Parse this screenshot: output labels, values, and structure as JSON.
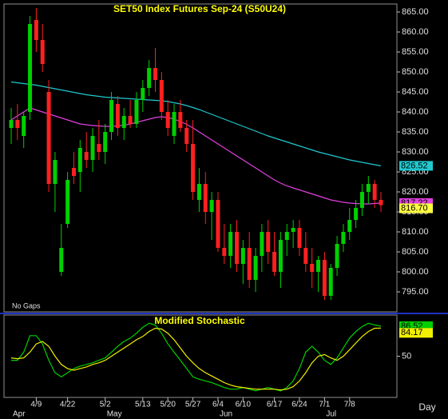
{
  "chart_data": {
    "type": "candlestick",
    "title": "SET50  Index  Futures  Sep-24  (S50U24)",
    "note": "No  Gaps",
    "x_label": "Day",
    "categories": [
      null,
      null,
      null,
      null,
      "4/9",
      null,
      null,
      null,
      null,
      "4/22",
      null,
      null,
      null,
      null,
      null,
      "5/2",
      null,
      null,
      null,
      null,
      null,
      "5/13",
      null,
      null,
      null,
      "5/20",
      null,
      null,
      null,
      "5/27",
      null,
      null,
      null,
      "6/4",
      null,
      null,
      null,
      "6/10",
      null,
      null,
      null,
      null,
      "6/17",
      null,
      null,
      null,
      "6/24",
      null,
      null,
      null,
      "7/1",
      null,
      null,
      null,
      "7/8",
      null,
      null,
      null,
      null,
      null
    ],
    "months": [
      "Apr",
      null,
      null,
      null,
      null,
      null,
      null,
      null,
      null,
      null,
      null,
      null,
      null,
      null,
      null,
      "May",
      null,
      null,
      null,
      null,
      null,
      null,
      null,
      null,
      null,
      null,
      null,
      null,
      null,
      null,
      null,
      null,
      null,
      "Jun",
      null,
      null,
      null,
      null,
      null,
      null,
      null,
      null,
      null,
      null,
      null,
      null,
      null,
      null,
      null,
      null,
      "Jul",
      null,
      null,
      null,
      null,
      null,
      null,
      null,
      null,
      null
    ],
    "open": [
      836,
      838,
      834,
      840,
      863,
      858,
      845,
      822,
      800,
      812,
      826,
      825,
      830,
      828,
      832,
      830,
      835,
      842,
      836,
      839,
      837,
      843,
      846,
      851,
      848,
      840,
      834,
      840,
      836,
      832,
      818,
      822,
      815,
      818,
      806,
      804,
      810,
      802,
      806,
      798,
      804,
      810,
      805,
      800,
      808,
      810,
      811,
      806,
      802,
      800,
      803,
      794,
      801,
      807,
      810,
      813,
      816,
      820,
      822,
      818
    ],
    "high": [
      841,
      842,
      840,
      864,
      866,
      862,
      848,
      830,
      812,
      825,
      830,
      833,
      835,
      836,
      838,
      837,
      845,
      844,
      841,
      843,
      845,
      848,
      853,
      856,
      850,
      843,
      842,
      843,
      838,
      838,
      826,
      825,
      820,
      820,
      812,
      812,
      813,
      808,
      810,
      806,
      812,
      813,
      810,
      810,
      812,
      813,
      813,
      810,
      806,
      804,
      805,
      802,
      809,
      812,
      816,
      818,
      822,
      824,
      823,
      820
    ],
    "low": [
      832,
      833,
      831,
      838,
      855,
      850,
      820,
      815,
      799,
      811,
      822,
      820,
      826,
      825,
      828,
      827,
      833,
      834,
      833,
      836,
      836,
      840,
      844,
      845,
      838,
      834,
      832,
      835,
      830,
      818,
      815,
      812,
      808,
      805,
      802,
      801,
      800,
      797,
      796,
      795,
      800,
      802,
      799,
      796,
      804,
      806,
      804,
      800,
      796,
      795,
      793,
      793,
      799,
      805,
      808,
      811,
      814,
      817,
      816,
      815
    ],
    "close": [
      838,
      836,
      839,
      862,
      858,
      852,
      822,
      828,
      806,
      823,
      824,
      831,
      828,
      834,
      830,
      835,
      843,
      836,
      839,
      837,
      843,
      846,
      851,
      848,
      840,
      836,
      840,
      836,
      832,
      820,
      822,
      815,
      818,
      806,
      804,
      810,
      802,
      806,
      798,
      804,
      810,
      805,
      800,
      808,
      810,
      811,
      806,
      802,
      800,
      803,
      794,
      801,
      807,
      810,
      813,
      816,
      820,
      822,
      818,
      816.7
    ],
    "last_close_label": "816.70",
    "up_color": "#00d000",
    "down_color": "#ff2020",
    "overlays": [
      {
        "color": "#20c8d0",
        "values": [
          847.5,
          847.3,
          847.1,
          846.9,
          846.7,
          846.4,
          846.1,
          845.8,
          845.5,
          845.2,
          844.9,
          844.6,
          844.3,
          844.1,
          843.9,
          843.7,
          843.6,
          843.5,
          843.4,
          843.3,
          843.2,
          843.1,
          843,
          842.9,
          842.8,
          842.6,
          842.3,
          842,
          841.6,
          841.1,
          840.6,
          840,
          839.4,
          838.8,
          838.2,
          837.6,
          837,
          836.4,
          835.8,
          835.2,
          834.6,
          834,
          833.5,
          833,
          832.5,
          832,
          831.5,
          831,
          830.5,
          830,
          829.6,
          829.2,
          828.8,
          828.4,
          828,
          827.7,
          827.4,
          827.1,
          826.8,
          826.52
        ]
      },
      {
        "color": "#e040e0",
        "values": [
          838,
          839,
          840,
          841,
          840.5,
          840,
          839.5,
          839,
          838.5,
          838,
          837.5,
          837,
          836.8,
          836.6,
          836.5,
          836.4,
          836.4,
          836.5,
          836.7,
          837,
          837.4,
          837.8,
          838.2,
          838.6,
          838.8,
          838.6,
          838.2,
          837.6,
          836.9,
          836,
          835,
          834,
          833,
          832,
          831,
          830,
          829,
          828,
          827,
          826,
          825,
          824,
          823,
          822.2,
          821.5,
          821,
          820.5,
          820,
          819.5,
          819,
          818.5,
          818,
          817.7,
          817.4,
          817.2,
          817.1,
          817,
          817,
          817.1,
          817.22
        ]
      }
    ],
    "ylim": [
      790,
      867
    ],
    "yticks": [
      {
        "value": 795,
        "label": "795.00"
      },
      {
        "value": 800,
        "label": "800.00"
      },
      {
        "value": 805,
        "label": "805.00"
      },
      {
        "value": 810,
        "label": "810.00"
      },
      {
        "value": 815,
        "label": "815.00"
      },
      {
        "value": 820,
        "label": "820.00"
      },
      {
        "value": 825,
        "label": "825.00"
      },
      {
        "value": 830,
        "label": "830.00"
      },
      {
        "value": 835,
        "label": "835.00"
      },
      {
        "value": 840,
        "label": "840.00"
      },
      {
        "value": 845,
        "label": "845.00"
      },
      {
        "value": 850,
        "label": "850.00"
      },
      {
        "value": 855,
        "label": "855.00"
      },
      {
        "value": 860,
        "label": "860.00"
      },
      {
        "value": 865,
        "label": "865.00"
      }
    ],
    "stochastic": {
      "title": "Modified  Stochastic",
      "ylim": [
        0,
        100
      ],
      "yticks": [
        50
      ],
      "series": [
        {
          "color": "#00d000",
          "values": [
            45,
            45,
            55,
            75,
            75,
            65,
            45,
            30,
            25,
            30,
            35,
            38,
            40,
            42,
            45,
            48,
            55,
            62,
            68,
            72,
            78,
            85,
            90,
            88,
            78,
            65,
            55,
            45,
            35,
            25,
            22,
            20,
            18,
            15,
            12,
            10,
            10,
            12,
            10,
            8,
            10,
            12,
            10,
            8,
            12,
            20,
            35,
            55,
            62,
            55,
            45,
            40,
            48,
            60,
            72,
            80,
            86,
            90,
            88,
            86.52
          ]
        },
        {
          "color": "#f0f000",
          "values": [
            48,
            47,
            48,
            55,
            65,
            68,
            62,
            50,
            40,
            35,
            33,
            35,
            37,
            40,
            42,
            45,
            50,
            55,
            60,
            65,
            70,
            74,
            80,
            84,
            83,
            78,
            70,
            60,
            50,
            42,
            35,
            30,
            26,
            22,
            18,
            15,
            13,
            12,
            11,
            10,
            10,
            10,
            10,
            9,
            10,
            13,
            20,
            30,
            42,
            50,
            52,
            48,
            45,
            50,
            58,
            66,
            74,
            80,
            84,
            84.17
          ]
        }
      ]
    }
  }
}
